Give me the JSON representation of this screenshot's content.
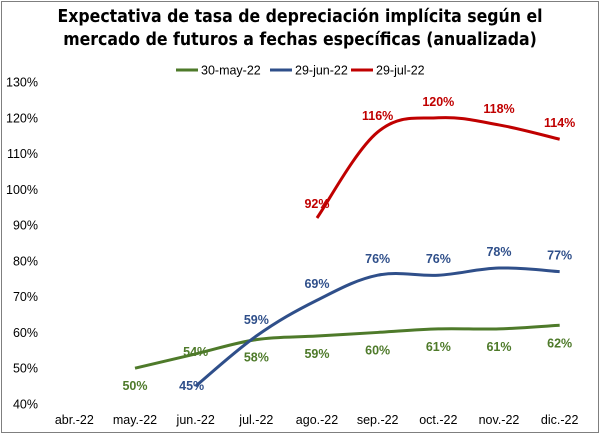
{
  "chart_data": {
    "type": "line",
    "title_lines": [
      "Expectativa de tasa de depreciación implícita según el",
      "mercado de futuros a fechas específicas (anualizada)"
    ],
    "categories": [
      "abr.-22",
      "may.-22",
      "jun.-22",
      "jul.-22",
      "ago.-22",
      "sep.-22",
      "oct.-22",
      "nov.-22",
      "dic.-22"
    ],
    "y_ticks": [
      "40%",
      "50%",
      "60%",
      "70%",
      "80%",
      "90%",
      "100%",
      "110%",
      "120%",
      "130%"
    ],
    "ylim": [
      40,
      130
    ],
    "legend_position": "top",
    "grid": false,
    "series": [
      {
        "name": "30-may-22",
        "color": "#4e7a2a",
        "values": [
          null,
          50,
          54,
          58,
          59,
          60,
          61,
          61,
          62
        ],
        "labels": [
          null,
          "50%",
          "54%",
          "58%",
          "59%",
          "60%",
          "61%",
          "61%",
          "62%"
        ]
      },
      {
        "name": "29-jun-22",
        "color": "#2f4f8a",
        "values": [
          null,
          null,
          45,
          59,
          69,
          76,
          76,
          78,
          77
        ],
        "labels": [
          null,
          null,
          "45%",
          "59%",
          "69%",
          "76%",
          "76%",
          "78%",
          "77%"
        ]
      },
      {
        "name": "29-jul-22",
        "color": "#c00000",
        "values": [
          null,
          null,
          null,
          null,
          92,
          116,
          120,
          118,
          114
        ],
        "labels": [
          null,
          null,
          null,
          null,
          "92%",
          "116%",
          "120%",
          "118%",
          "114%"
        ]
      }
    ]
  }
}
